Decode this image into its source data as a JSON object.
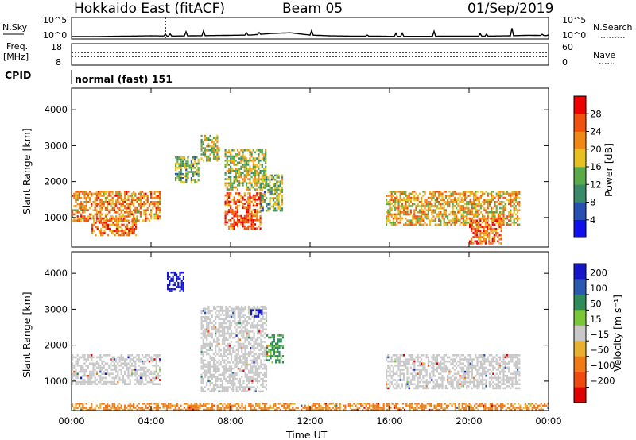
{
  "header": {
    "radar": "Hokkaido East (fitACF)",
    "beam": "Beam 05",
    "date": "01/Sep/2019"
  },
  "side_labels": {
    "nsky": "N.Sky",
    "freq_top": "Freq.",
    "freq_unit": "[MHz]",
    "cpid": "CPID",
    "nsearch": "N.Search",
    "nave": "Nave"
  },
  "cpid_value": "normal (fast) 151",
  "colors": {
    "power": [
      "#1010ee",
      "#2850b0",
      "#3a8a6a",
      "#5aaa4a",
      "#e8c020",
      "#f08818",
      "#f05010",
      "#ee0000"
    ],
    "velocity": [
      "#1414c8",
      "#2a5ab0",
      "#2f8c5a",
      "#7ac83a",
      "#c8c8c8",
      "#e8b030",
      "#f07a18",
      "#f04a10",
      "#e00000"
    ]
  },
  "chart_data": [
    {
      "type": "line",
      "panel": "noise",
      "y_tick_labels": [
        "10^5",
        "10^0"
      ],
      "right_tick_labels": [
        "10^5",
        "10^0"
      ],
      "legend_left": "N.Sky",
      "legend_right": "N.Search",
      "x": [
        0,
        1,
        2,
        3,
        4,
        5,
        6,
        7,
        8,
        9,
        10,
        11,
        12,
        13,
        14,
        15,
        16,
        17,
        18,
        19,
        20,
        21,
        22,
        23,
        24
      ],
      "values": [
        1.0,
        1.0,
        1.1,
        1.2,
        1.3,
        1.2,
        1.3,
        1.4,
        1.5,
        1.6,
        2.2,
        2.5,
        1.6,
        1.3,
        1.2,
        1.2,
        1.1,
        1.1,
        1.1,
        1.2,
        1.2,
        1.2,
        1.3,
        1.5,
        1.4
      ]
    },
    {
      "type": "line",
      "panel": "frequency",
      "y_tick_labels": [
        "18",
        "8"
      ],
      "right_tick_labels": [
        "60",
        "0"
      ],
      "legend_left": "[MHz]",
      "legend_right": "Nave"
    },
    {
      "type": "heatmap",
      "panel": "power",
      "ylabel": "Slant Range [km]",
      "y_tick_labels": [
        "1000",
        "2000",
        "3000",
        "4000"
      ],
      "colorbar_label": "Power [dB]",
      "colorbar_ticks": [
        "4",
        "8",
        "12",
        "16",
        "20",
        "24",
        "28"
      ],
      "scatter_regions": [
        {
          "t0": 0.0,
          "t1": 4.4,
          "r0": 900,
          "r1": 1750,
          "power": 24
        },
        {
          "t0": 1.0,
          "t1": 3.2,
          "r0": 500,
          "r1": 1000,
          "power": 26
        },
        {
          "t0": 5.2,
          "t1": 6.4,
          "r0": 2000,
          "r1": 2700,
          "power": 15
        },
        {
          "t0": 6.5,
          "t1": 7.4,
          "r0": 2600,
          "r1": 3300,
          "power": 17
        },
        {
          "t0": 7.7,
          "t1": 9.5,
          "r0": 700,
          "r1": 1700,
          "power": 27
        },
        {
          "t0": 7.7,
          "t1": 9.8,
          "r0": 1800,
          "r1": 2900,
          "power": 18
        },
        {
          "t0": 9.5,
          "t1": 10.6,
          "r0": 1200,
          "r1": 2200,
          "power": 16
        },
        {
          "t0": 15.8,
          "t1": 22.5,
          "r0": 800,
          "r1": 1750,
          "power": 22
        },
        {
          "t0": 20.0,
          "t1": 21.6,
          "r0": 300,
          "r1": 1000,
          "power": 27
        }
      ]
    },
    {
      "type": "heatmap",
      "panel": "velocity",
      "xlabel": "Time UT",
      "ylabel": "Slant Range [km]",
      "x_tick_labels": [
        "00:00",
        "04:00",
        "08:00",
        "12:00",
        "16:00",
        "20:00",
        "00:00"
      ],
      "y_tick_labels": [
        "1000",
        "2000",
        "3000",
        "4000"
      ],
      "colorbar_label": "Velocity [m s⁻¹]",
      "colorbar_ticks": [
        "200",
        "100",
        "50",
        "15",
        "−15",
        "−50",
        "−100",
        "−200"
      ],
      "scatter_regions": [
        {
          "t0": 0.0,
          "t1": 4.4,
          "r0": 900,
          "r1": 1750,
          "velocity": 0
        },
        {
          "t0": 4.8,
          "t1": 5.6,
          "r0": 3500,
          "r1": 4050,
          "velocity": 210
        },
        {
          "t0": 6.5,
          "t1": 9.8,
          "r0": 700,
          "r1": 3100,
          "velocity": 0
        },
        {
          "t0": 9.0,
          "t1": 9.6,
          "r0": 2800,
          "r1": 3000,
          "velocity": 180
        },
        {
          "t0": 9.8,
          "t1": 10.6,
          "r0": 1500,
          "r1": 2300,
          "velocity": 40
        },
        {
          "t0": 15.8,
          "t1": 22.5,
          "r0": 800,
          "r1": 1750,
          "velocity": 0
        },
        {
          "t0": 0.0,
          "t1": 24.0,
          "r0": 200,
          "r1": 400,
          "velocity": -40
        }
      ]
    }
  ]
}
